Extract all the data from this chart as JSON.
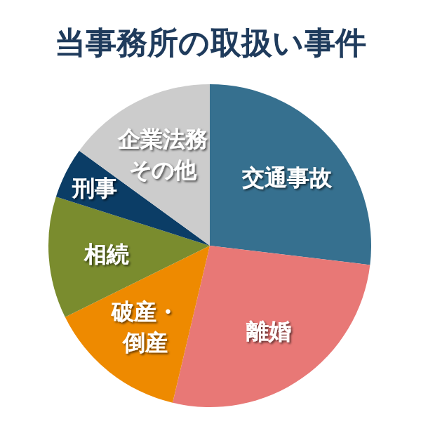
{
  "chart_data": {
    "type": "pie",
    "title": "当事務所の取扱い事件",
    "categories": [
      "交通事故",
      "離婚",
      "破産・倒産",
      "相続",
      "刑事",
      "企業法務その他"
    ],
    "values": [
      26.9,
      26.8,
      14.0,
      12.2,
      5.1,
      15.0
    ],
    "colors": [
      "#36708f",
      "#e87876",
      "#ee8a00",
      "#7a8c2e",
      "#0b3d66",
      "#cccccc"
    ]
  }
}
